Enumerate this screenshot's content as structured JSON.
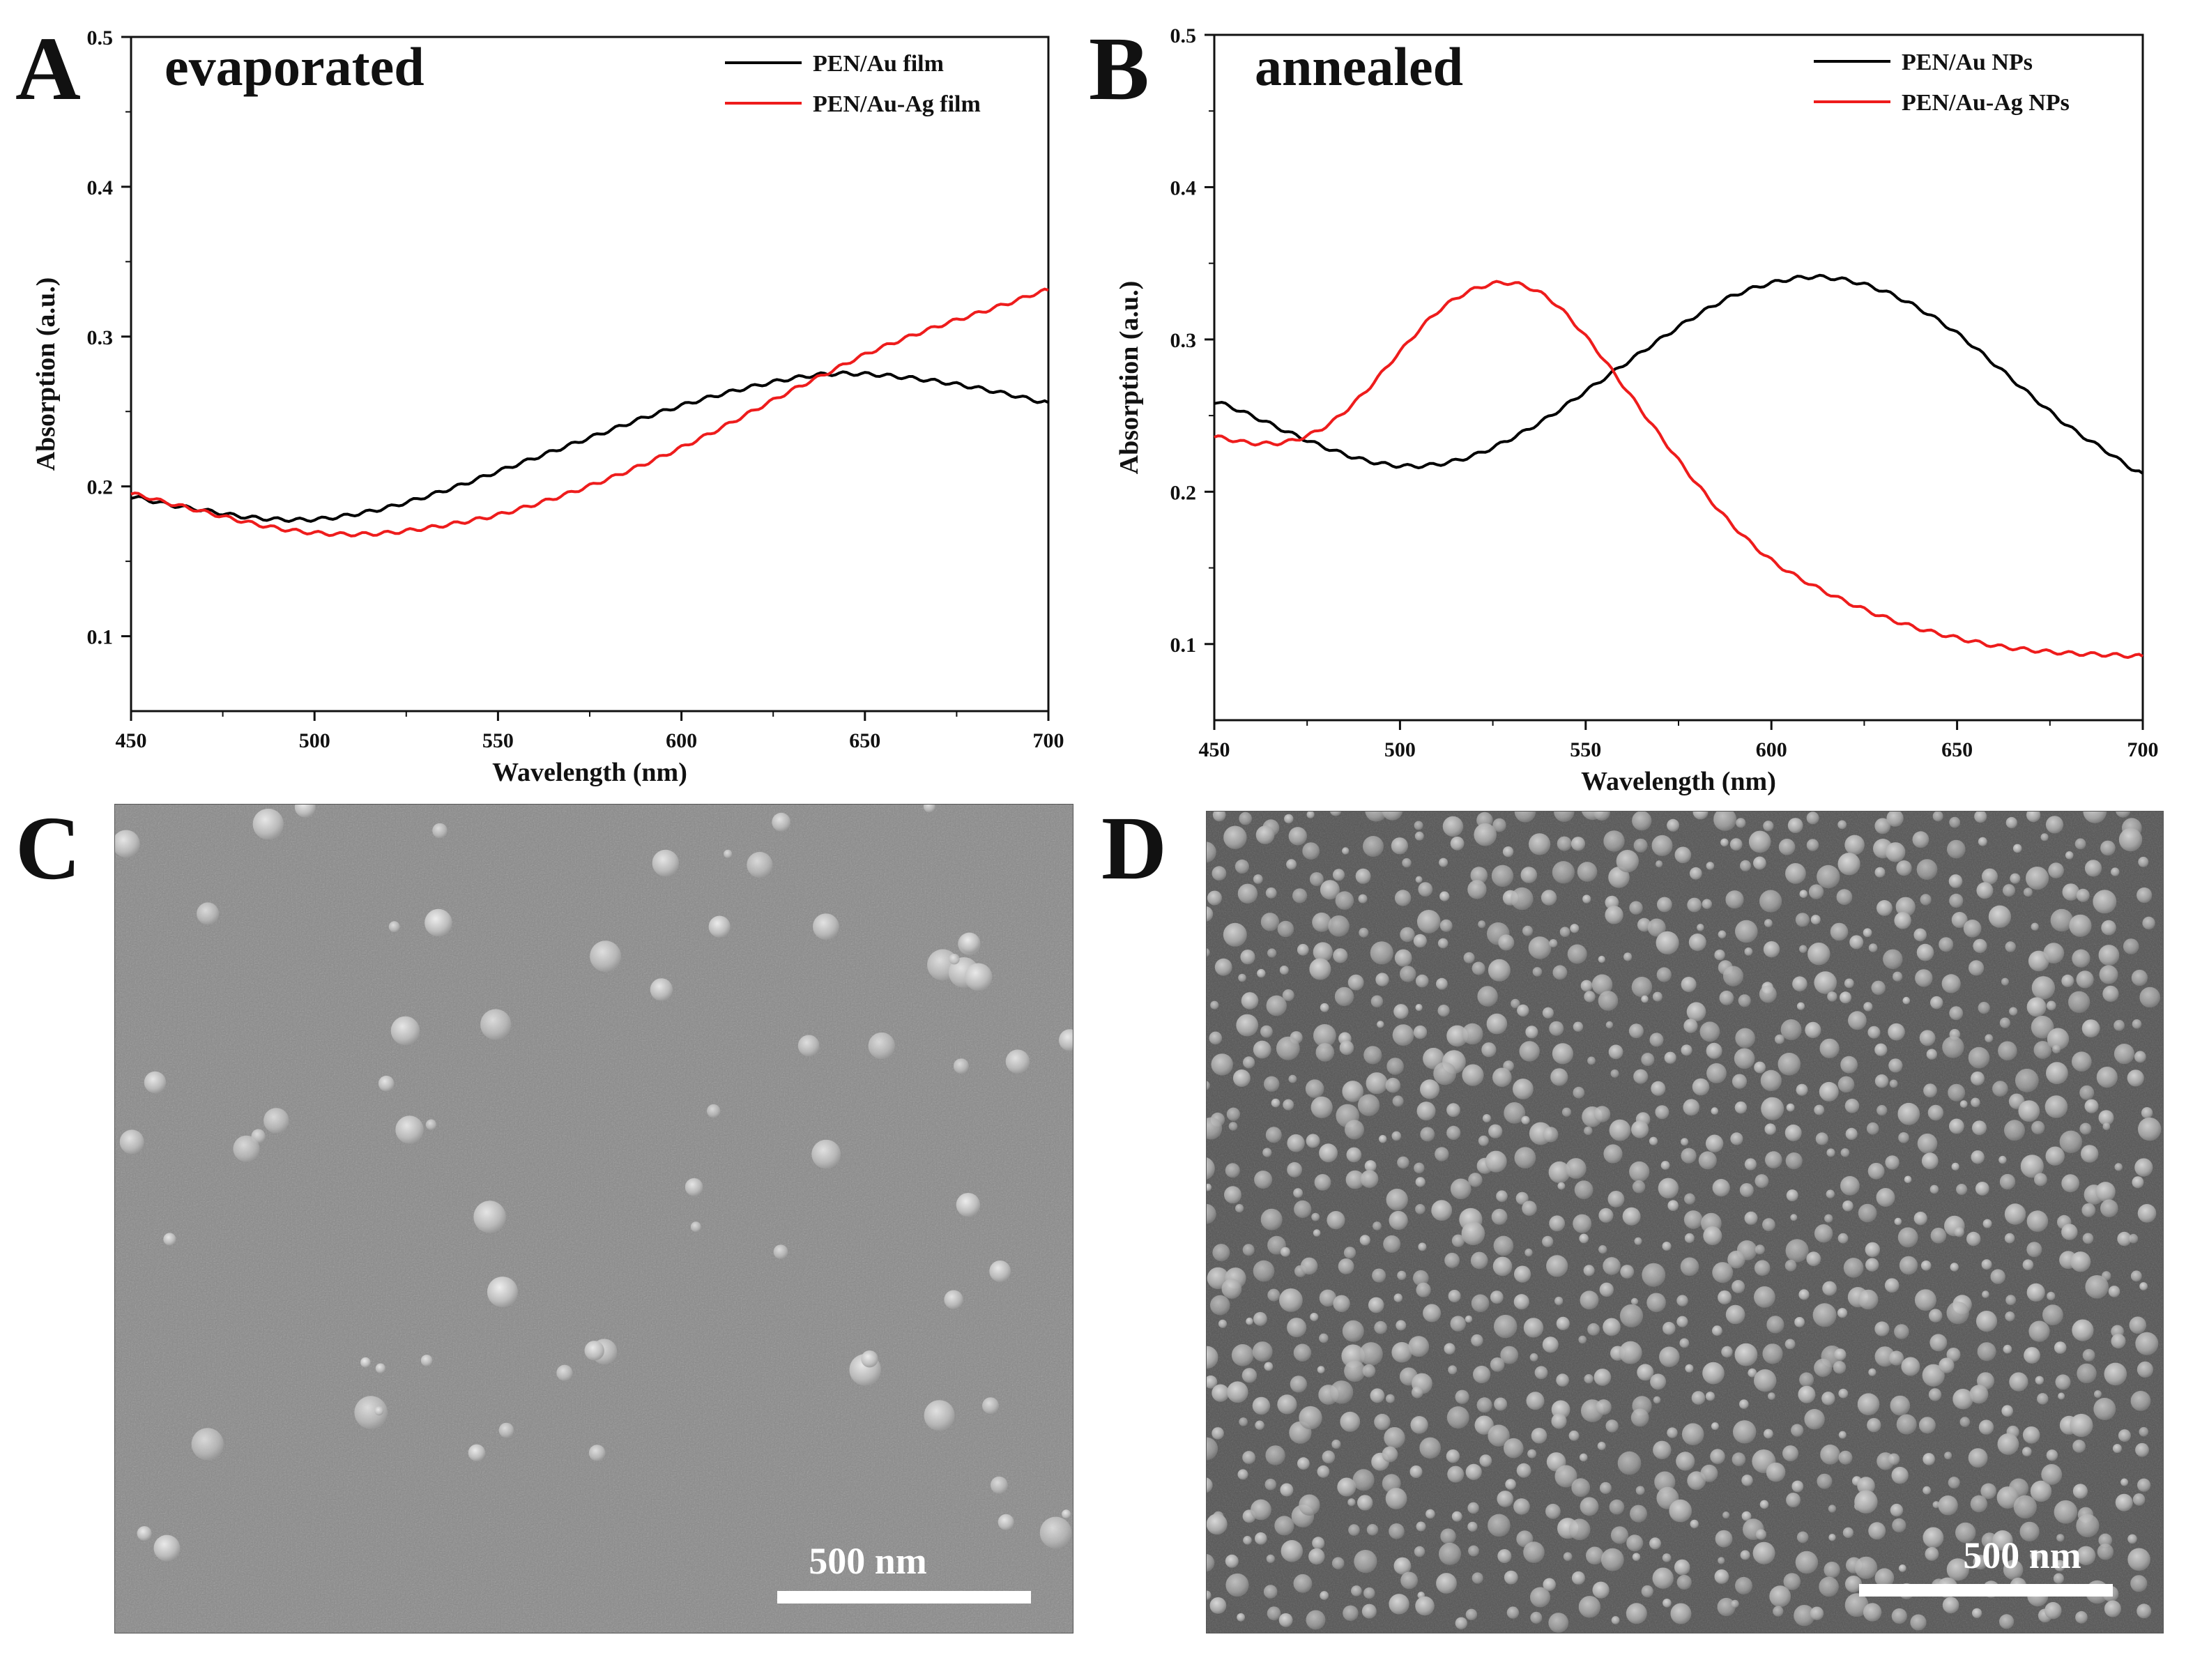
{
  "figure": {
    "panel_letters": [
      "A",
      "B",
      "C",
      "D"
    ],
    "colors": {
      "au": "#000000",
      "au_ag": "#ee1c1c",
      "sem_bg_c": "#8a8a8a",
      "sem_bg_d": "#555555"
    }
  },
  "chart_data": [
    {
      "type": "line",
      "panel": "A",
      "annotation": "evaporated",
      "xlabel": "Wavelength (nm)",
      "ylabel": "Absorption (a.u.)",
      "xlim": [
        450,
        700
      ],
      "ylim": [
        0.05,
        0.5
      ],
      "xticks": [
        450,
        500,
        550,
        600,
        650,
        700
      ],
      "yticks": [
        0.1,
        0.2,
        0.3,
        0.4,
        0.5
      ],
      "legend_position": "top-right",
      "series": [
        {
          "name": "PEN/Au film",
          "color": "#000000",
          "x": [
            450,
            460,
            470,
            480,
            490,
            500,
            510,
            520,
            530,
            540,
            550,
            560,
            570,
            580,
            590,
            600,
            610,
            620,
            630,
            640,
            650,
            660,
            670,
            680,
            690,
            700
          ],
          "y": [
            0.193,
            0.188,
            0.184,
            0.18,
            0.178,
            0.178,
            0.181,
            0.186,
            0.193,
            0.201,
            0.21,
            0.219,
            0.228,
            0.237,
            0.246,
            0.254,
            0.261,
            0.267,
            0.272,
            0.275,
            0.275,
            0.273,
            0.27,
            0.266,
            0.261,
            0.256
          ]
        },
        {
          "name": "PEN/Au-Ag film",
          "color": "#ee1c1c",
          "x": [
            450,
            460,
            470,
            480,
            490,
            500,
            510,
            520,
            530,
            540,
            550,
            560,
            570,
            580,
            590,
            600,
            610,
            620,
            630,
            640,
            650,
            660,
            670,
            680,
            690,
            700
          ],
          "y": [
            0.195,
            0.189,
            0.183,
            0.177,
            0.172,
            0.169,
            0.168,
            0.169,
            0.172,
            0.176,
            0.181,
            0.188,
            0.196,
            0.205,
            0.215,
            0.226,
            0.238,
            0.251,
            0.264,
            0.276,
            0.288,
            0.298,
            0.307,
            0.315,
            0.323,
            0.331
          ]
        }
      ]
    },
    {
      "type": "line",
      "panel": "B",
      "annotation": "annealed",
      "xlabel": "Wavelength (nm)",
      "ylabel": "Absorption (a.u.)",
      "xlim": [
        450,
        700
      ],
      "ylim": [
        0.05,
        0.5
      ],
      "xticks": [
        450,
        500,
        550,
        600,
        650,
        700
      ],
      "yticks": [
        0.1,
        0.2,
        0.3,
        0.4,
        0.5
      ],
      "legend_position": "top-right",
      "series": [
        {
          "name": "PEN/Au NPs",
          "color": "#000000",
          "x": [
            450,
            460,
            470,
            480,
            490,
            500,
            510,
            520,
            530,
            540,
            550,
            560,
            570,
            580,
            590,
            600,
            610,
            620,
            630,
            640,
            650,
            660,
            670,
            680,
            690,
            700
          ],
          "y": [
            0.259,
            0.25,
            0.239,
            0.229,
            0.221,
            0.217,
            0.218,
            0.224,
            0.235,
            0.249,
            0.266,
            0.283,
            0.3,
            0.316,
            0.329,
            0.337,
            0.341,
            0.339,
            0.332,
            0.32,
            0.304,
            0.284,
            0.263,
            0.243,
            0.227,
            0.212
          ]
        },
        {
          "name": "PEN/Au-Ag NPs",
          "color": "#ee1c1c",
          "x": [
            450,
            460,
            470,
            480,
            490,
            500,
            510,
            520,
            530,
            540,
            550,
            560,
            570,
            580,
            590,
            600,
            610,
            620,
            630,
            640,
            650,
            660,
            670,
            680,
            690,
            700
          ],
          "y": [
            0.236,
            0.232,
            0.233,
            0.243,
            0.264,
            0.292,
            0.318,
            0.333,
            0.337,
            0.327,
            0.302,
            0.27,
            0.237,
            0.205,
            0.177,
            0.155,
            0.14,
            0.128,
            0.118,
            0.11,
            0.104,
            0.099,
            0.096,
            0.094,
            0.093,
            0.092
          ]
        }
      ]
    }
  ],
  "sem_c": {
    "scale_label": "500 nm"
  },
  "sem_d": {
    "scale_label": "500 nm"
  }
}
